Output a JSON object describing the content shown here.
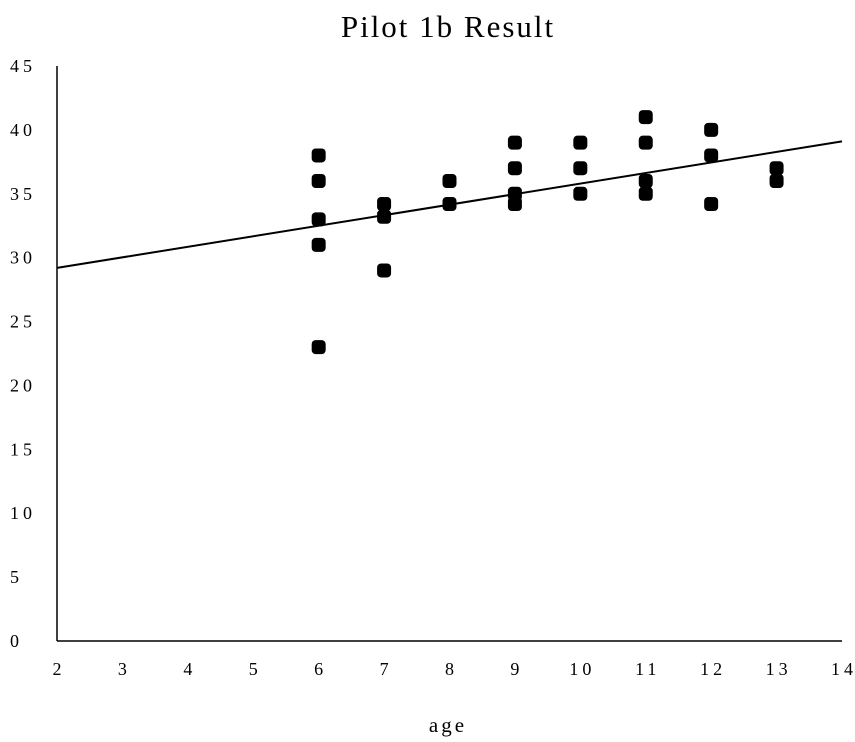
{
  "chart_data": {
    "type": "scatter",
    "title": "Pilot 1b Result",
    "xlabel": "age",
    "ylabel": "",
    "xlim": [
      2,
      14
    ],
    "ylim": [
      0,
      45
    ],
    "xticks": [
      "2",
      "3",
      "4",
      "5",
      "6",
      "7",
      "8",
      "9",
      "10",
      "11",
      "12",
      "13",
      "14"
    ],
    "yticks": [
      "0",
      "5",
      "10",
      "15",
      "20",
      "25",
      "30",
      "35",
      "40",
      "45"
    ],
    "grid": false,
    "legend": "none",
    "series": [
      {
        "points": [
          {
            "x": 6,
            "y": 38
          },
          {
            "x": 6,
            "y": 36
          },
          {
            "x": 6,
            "y": 33
          },
          {
            "x": 6,
            "y": 31
          },
          {
            "x": 6,
            "y": 23
          },
          {
            "x": 7,
            "y": 34.2
          },
          {
            "x": 7,
            "y": 33.2
          },
          {
            "x": 7,
            "y": 29
          },
          {
            "x": 8,
            "y": 36
          },
          {
            "x": 8,
            "y": 34.2
          },
          {
            "x": 9,
            "y": 39
          },
          {
            "x": 9,
            "y": 37
          },
          {
            "x": 9,
            "y": 35
          },
          {
            "x": 9,
            "y": 34.2
          },
          {
            "x": 10,
            "y": 39
          },
          {
            "x": 10,
            "y": 37
          },
          {
            "x": 10,
            "y": 35
          },
          {
            "x": 11,
            "y": 41
          },
          {
            "x": 11,
            "y": 39
          },
          {
            "x": 11,
            "y": 36
          },
          {
            "x": 11,
            "y": 35
          },
          {
            "x": 12,
            "y": 40
          },
          {
            "x": 12,
            "y": 38
          },
          {
            "x": 12,
            "y": 34.2
          },
          {
            "x": 13,
            "y": 37
          },
          {
            "x": 13,
            "y": 36
          }
        ]
      }
    ],
    "trendline": {
      "x": [
        2,
        14
      ],
      "y": [
        29.2,
        39.1
      ]
    }
  }
}
